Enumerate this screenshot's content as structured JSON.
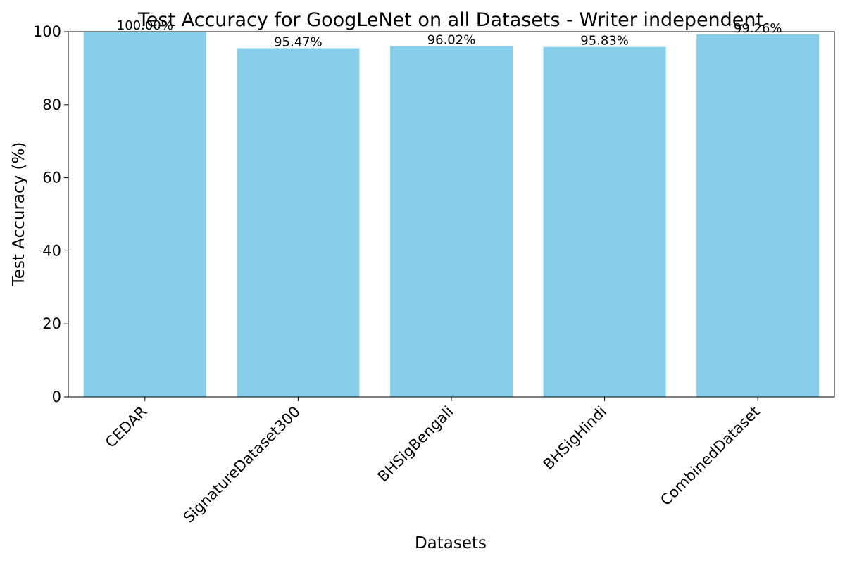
{
  "chart_data": {
    "type": "bar",
    "title": "Test Accuracy for GoogLeNet on all Datasets - Writer independent",
    "xlabel": "Datasets",
    "ylabel": "Test Accuracy (%)",
    "categories": [
      "CEDAR",
      "SignatureDataset300",
      "BHSigBengali",
      "BHSigHindi",
      "CombinedDataset"
    ],
    "values": [
      100.0,
      95.47,
      96.02,
      95.83,
      99.26
    ],
    "data_labels": [
      "100.00%",
      "95.47%",
      "96.02%",
      "95.83%",
      "99.26%"
    ],
    "ylim": [
      0,
      100
    ],
    "yticks": [
      0,
      20,
      40,
      60,
      80,
      100
    ],
    "grid": false,
    "legend": "none",
    "colors": {
      "bar": "#87ceeb",
      "axis": "#000000",
      "text": "#000000"
    }
  }
}
